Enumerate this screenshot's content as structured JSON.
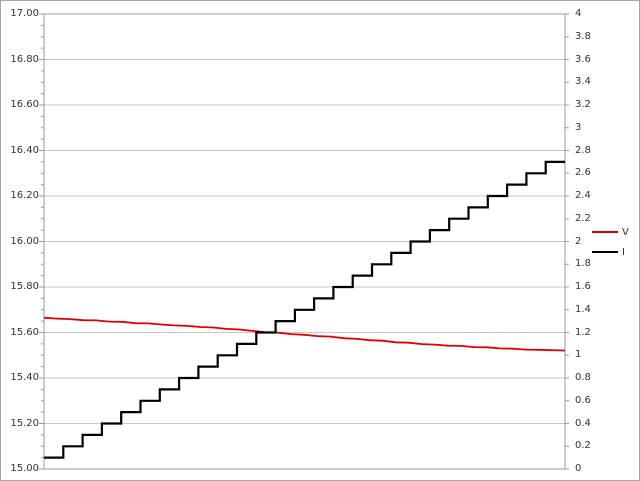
{
  "window": {
    "background_color": "#FFFFFF",
    "frame_border_color": "#A6A6A6",
    "plot_border_color": "#9B9B9B",
    "gridline_color": "#C9C9C9",
    "text_color": "#333333"
  },
  "chart_data": {
    "type": "line",
    "title": "",
    "xlabel": "",
    "ylabel": "",
    "grid": {
      "horizontal_values_left_axis": [
        16.8,
        16.6,
        16.4,
        16.2,
        16.0,
        15.8,
        15.6,
        15.4,
        15.2
      ],
      "vertical": "off"
    },
    "left_axis": {
      "min": 15.0,
      "max": 17.0,
      "major_step": 0.2,
      "minor_step": 0.05,
      "tick_labels": [
        "17.00",
        "16.80",
        "16.60",
        "16.40",
        "16.20",
        "16.00",
        "15.80",
        "15.60",
        "15.40",
        "15.20",
        "15.00"
      ]
    },
    "right_axis": {
      "min": 0,
      "max": 4,
      "major_step": 0.2,
      "tick_labels": [
        "4",
        "3.8",
        "3.6",
        "3.4",
        "3.2",
        "3",
        "2.8",
        "2.6",
        "2.4",
        "2.2",
        "2",
        "1.8",
        "1.6",
        "1.4",
        "1.2",
        "1",
        "0.8",
        "0.6",
        "0.4",
        "0.2",
        "0"
      ]
    },
    "x_axis": {
      "tick_labels": []
    },
    "legend_position": "right",
    "series": [
      {
        "name": "V",
        "axis": "left",
        "color": "#E00000",
        "line_width": 1.8,
        "points_x_pct_value": [
          [
            0,
            15.665
          ],
          [
            2.5,
            15.661
          ],
          [
            5,
            15.659
          ],
          [
            7.5,
            15.654
          ],
          [
            10,
            15.653
          ],
          [
            12.5,
            15.648
          ],
          [
            15,
            15.647
          ],
          [
            17.5,
            15.641
          ],
          [
            20,
            15.64
          ],
          [
            22.5,
            15.635
          ],
          [
            25,
            15.631
          ],
          [
            27.5,
            15.629
          ],
          [
            30,
            15.624
          ],
          [
            32.5,
            15.622
          ],
          [
            35,
            15.616
          ],
          [
            37.5,
            15.613
          ],
          [
            40,
            15.607
          ],
          [
            42.5,
            15.601
          ],
          [
            45,
            15.599
          ],
          [
            47.5,
            15.593
          ],
          [
            50,
            15.59
          ],
          [
            52.5,
            15.584
          ],
          [
            55,
            15.582
          ],
          [
            57.5,
            15.575
          ],
          [
            60,
            15.572
          ],
          [
            62.5,
            15.566
          ],
          [
            65,
            15.564
          ],
          [
            67.5,
            15.557
          ],
          [
            70,
            15.555
          ],
          [
            72.5,
            15.549
          ],
          [
            75,
            15.547
          ],
          [
            77.5,
            15.542
          ],
          [
            80,
            15.541
          ],
          [
            82.5,
            15.536
          ],
          [
            85,
            15.535
          ],
          [
            87.5,
            15.53
          ],
          [
            90,
            15.529
          ],
          [
            92.5,
            15.525
          ],
          [
            95,
            15.524
          ],
          [
            97.5,
            15.522
          ],
          [
            100,
            15.521
          ]
        ]
      },
      {
        "name": "I",
        "axis": "right",
        "color": "#000000",
        "line_width": 2.2,
        "shape": "step",
        "step_values": [
          0.1,
          0.2,
          0.3,
          0.4,
          0.5,
          0.6,
          0.7,
          0.8,
          0.9,
          1.0,
          1.1,
          1.2,
          1.3,
          1.4,
          1.5,
          1.6,
          1.7,
          1.8,
          1.9,
          2.0,
          2.1,
          2.2,
          2.3,
          2.4,
          2.5,
          2.6,
          2.7
        ]
      }
    ]
  }
}
